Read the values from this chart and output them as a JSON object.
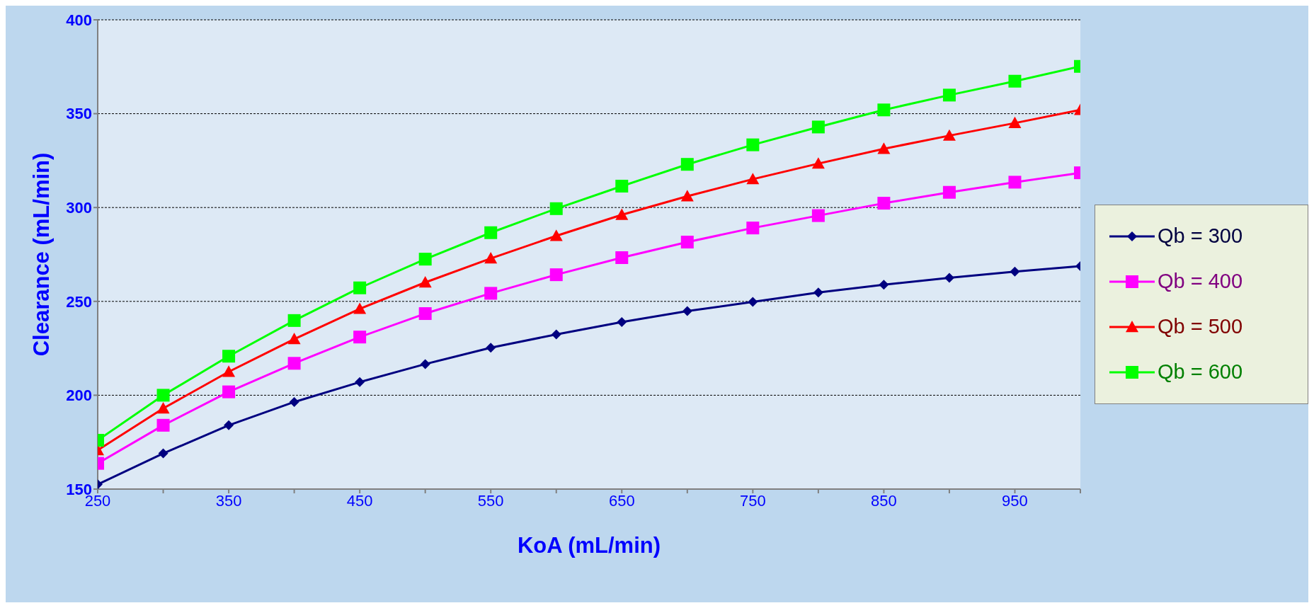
{
  "chart_data": {
    "type": "line",
    "xlabel": "KoA (mL/min)",
    "ylabel": "Clearance  (mL/min)",
    "x": [
      250,
      300,
      350,
      400,
      450,
      500,
      550,
      600,
      650,
      700,
      750,
      800,
      850,
      900,
      950,
      1000
    ],
    "series": [
      {
        "name": "Qb = 300",
        "color": "#000080",
        "marker": "diamond",
        "values": [
          152.5,
          169,
          184,
          196.4,
          207,
          216.6,
          225.3,
          232.4,
          239,
          244.8,
          249.7,
          254.7,
          258.9,
          262.6,
          265.9,
          268.8
        ]
      },
      {
        "name": "Qb = 400",
        "color": "#ff00ff",
        "marker": "square",
        "values": [
          163.7,
          184,
          201.8,
          217,
          231,
          243.5,
          254.3,
          264.2,
          273.3,
          281.6,
          289.1,
          295.7,
          302.3,
          308.1,
          313.5,
          318.5
        ]
      },
      {
        "name": "Qb = 500",
        "color": "#ff0000",
        "marker": "triangle",
        "values": [
          170.7,
          193,
          212.5,
          229.9,
          246,
          260.1,
          272.9,
          284.9,
          296.1,
          306,
          315.1,
          323.4,
          331.3,
          338.3,
          345,
          352
        ]
      },
      {
        "name": "Qb = 600",
        "color": "#00ff00",
        "marker": "square",
        "values": [
          176,
          200,
          220.8,
          239.8,
          257.2,
          272.5,
          286.6,
          299.4,
          311.4,
          323,
          333.4,
          342.9,
          352,
          359.9,
          367.3,
          375.2
        ]
      }
    ],
    "xlim": [
      250,
      1000
    ],
    "xticks": [
      250,
      {
        "value": 300,
        "label": null
      },
      350,
      {
        "value": 400,
        "label": null
      },
      450,
      {
        "value": 500,
        "label": null
      },
      550,
      {
        "value": 600,
        "label": null
      },
      650,
      {
        "value": 700,
        "label": null
      },
      750,
      {
        "value": 800,
        "label": null
      },
      850,
      {
        "value": 900,
        "label": null
      },
      950,
      {
        "value": 1000,
        "label": null
      }
    ],
    "ylim": [
      150,
      400
    ],
    "yticks": [
      150,
      200,
      250,
      300,
      350,
      400
    ],
    "grid": "y",
    "legend": "right",
    "line_style": "solid"
  }
}
